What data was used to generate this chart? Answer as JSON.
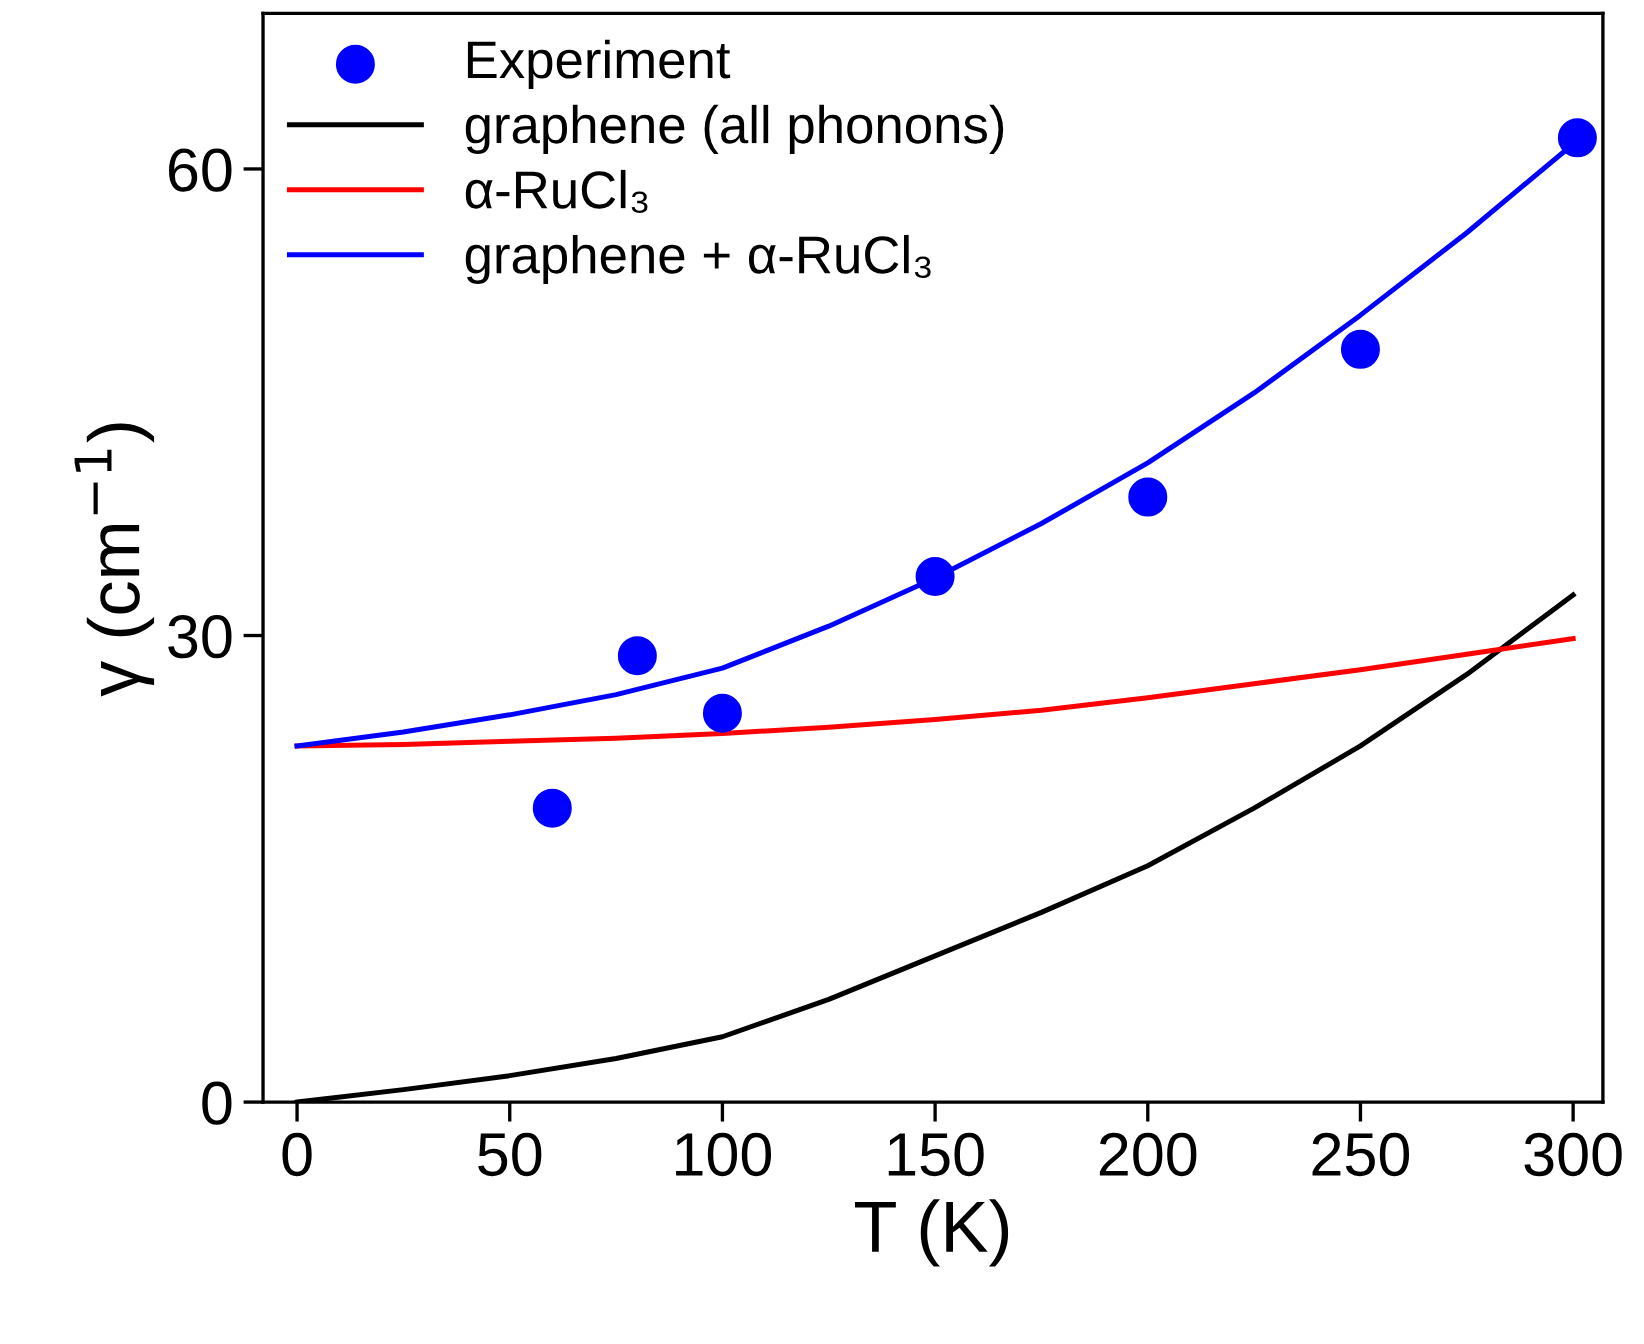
{
  "chart_data": {
    "type": "line",
    "xlabel": "T (K)",
    "ylabel": "γ (cm$^{−1}$)",
    "xlim": [
      -8,
      307
    ],
    "ylim": [
      0,
      70
    ],
    "xticks": [
      0,
      50,
      100,
      150,
      200,
      250,
      300
    ],
    "yticks": [
      0,
      30,
      60
    ],
    "grid": false,
    "legend": "top left",
    "series": [
      {
        "name": "Experiment",
        "type": "scatter",
        "marker": "circle",
        "color": "#0000ff",
        "x": [
          60,
          80,
          100,
          150,
          200,
          250,
          301
        ],
        "values": [
          18.9,
          28.7,
          25.0,
          33.8,
          38.9,
          48.4,
          62.0
        ]
      },
      {
        "name": "graphene (all phonons)",
        "color": "#000000",
        "x": [
          0,
          25,
          50,
          75,
          100,
          125,
          150,
          175,
          200,
          225,
          250,
          275,
          300
        ],
        "values": [
          0,
          0.8,
          1.7,
          2.8,
          4.2,
          6.6,
          9.4,
          12.2,
          15.2,
          18.9,
          22.9,
          27.5,
          32.6
        ]
      },
      {
        "name": "α-RuCl₃",
        "color": "#ff0000",
        "x": [
          0,
          25,
          50,
          75,
          100,
          125,
          150,
          175,
          200,
          225,
          250,
          275,
          300
        ],
        "values": [
          22.9,
          23.0,
          23.2,
          23.4,
          23.7,
          24.1,
          24.6,
          25.2,
          26.0,
          26.9,
          27.8,
          28.8,
          29.8
        ]
      },
      {
        "name": "graphene + α-RuCl₃",
        "color": "#0000ff",
        "x": [
          0,
          25,
          50,
          75,
          100,
          125,
          150,
          175,
          200,
          225,
          250,
          275,
          300
        ],
        "values": [
          22.9,
          23.8,
          24.9,
          26.2,
          27.9,
          30.6,
          33.7,
          37.2,
          41.1,
          45.6,
          50.6,
          55.9,
          61.6
        ]
      }
    ]
  }
}
